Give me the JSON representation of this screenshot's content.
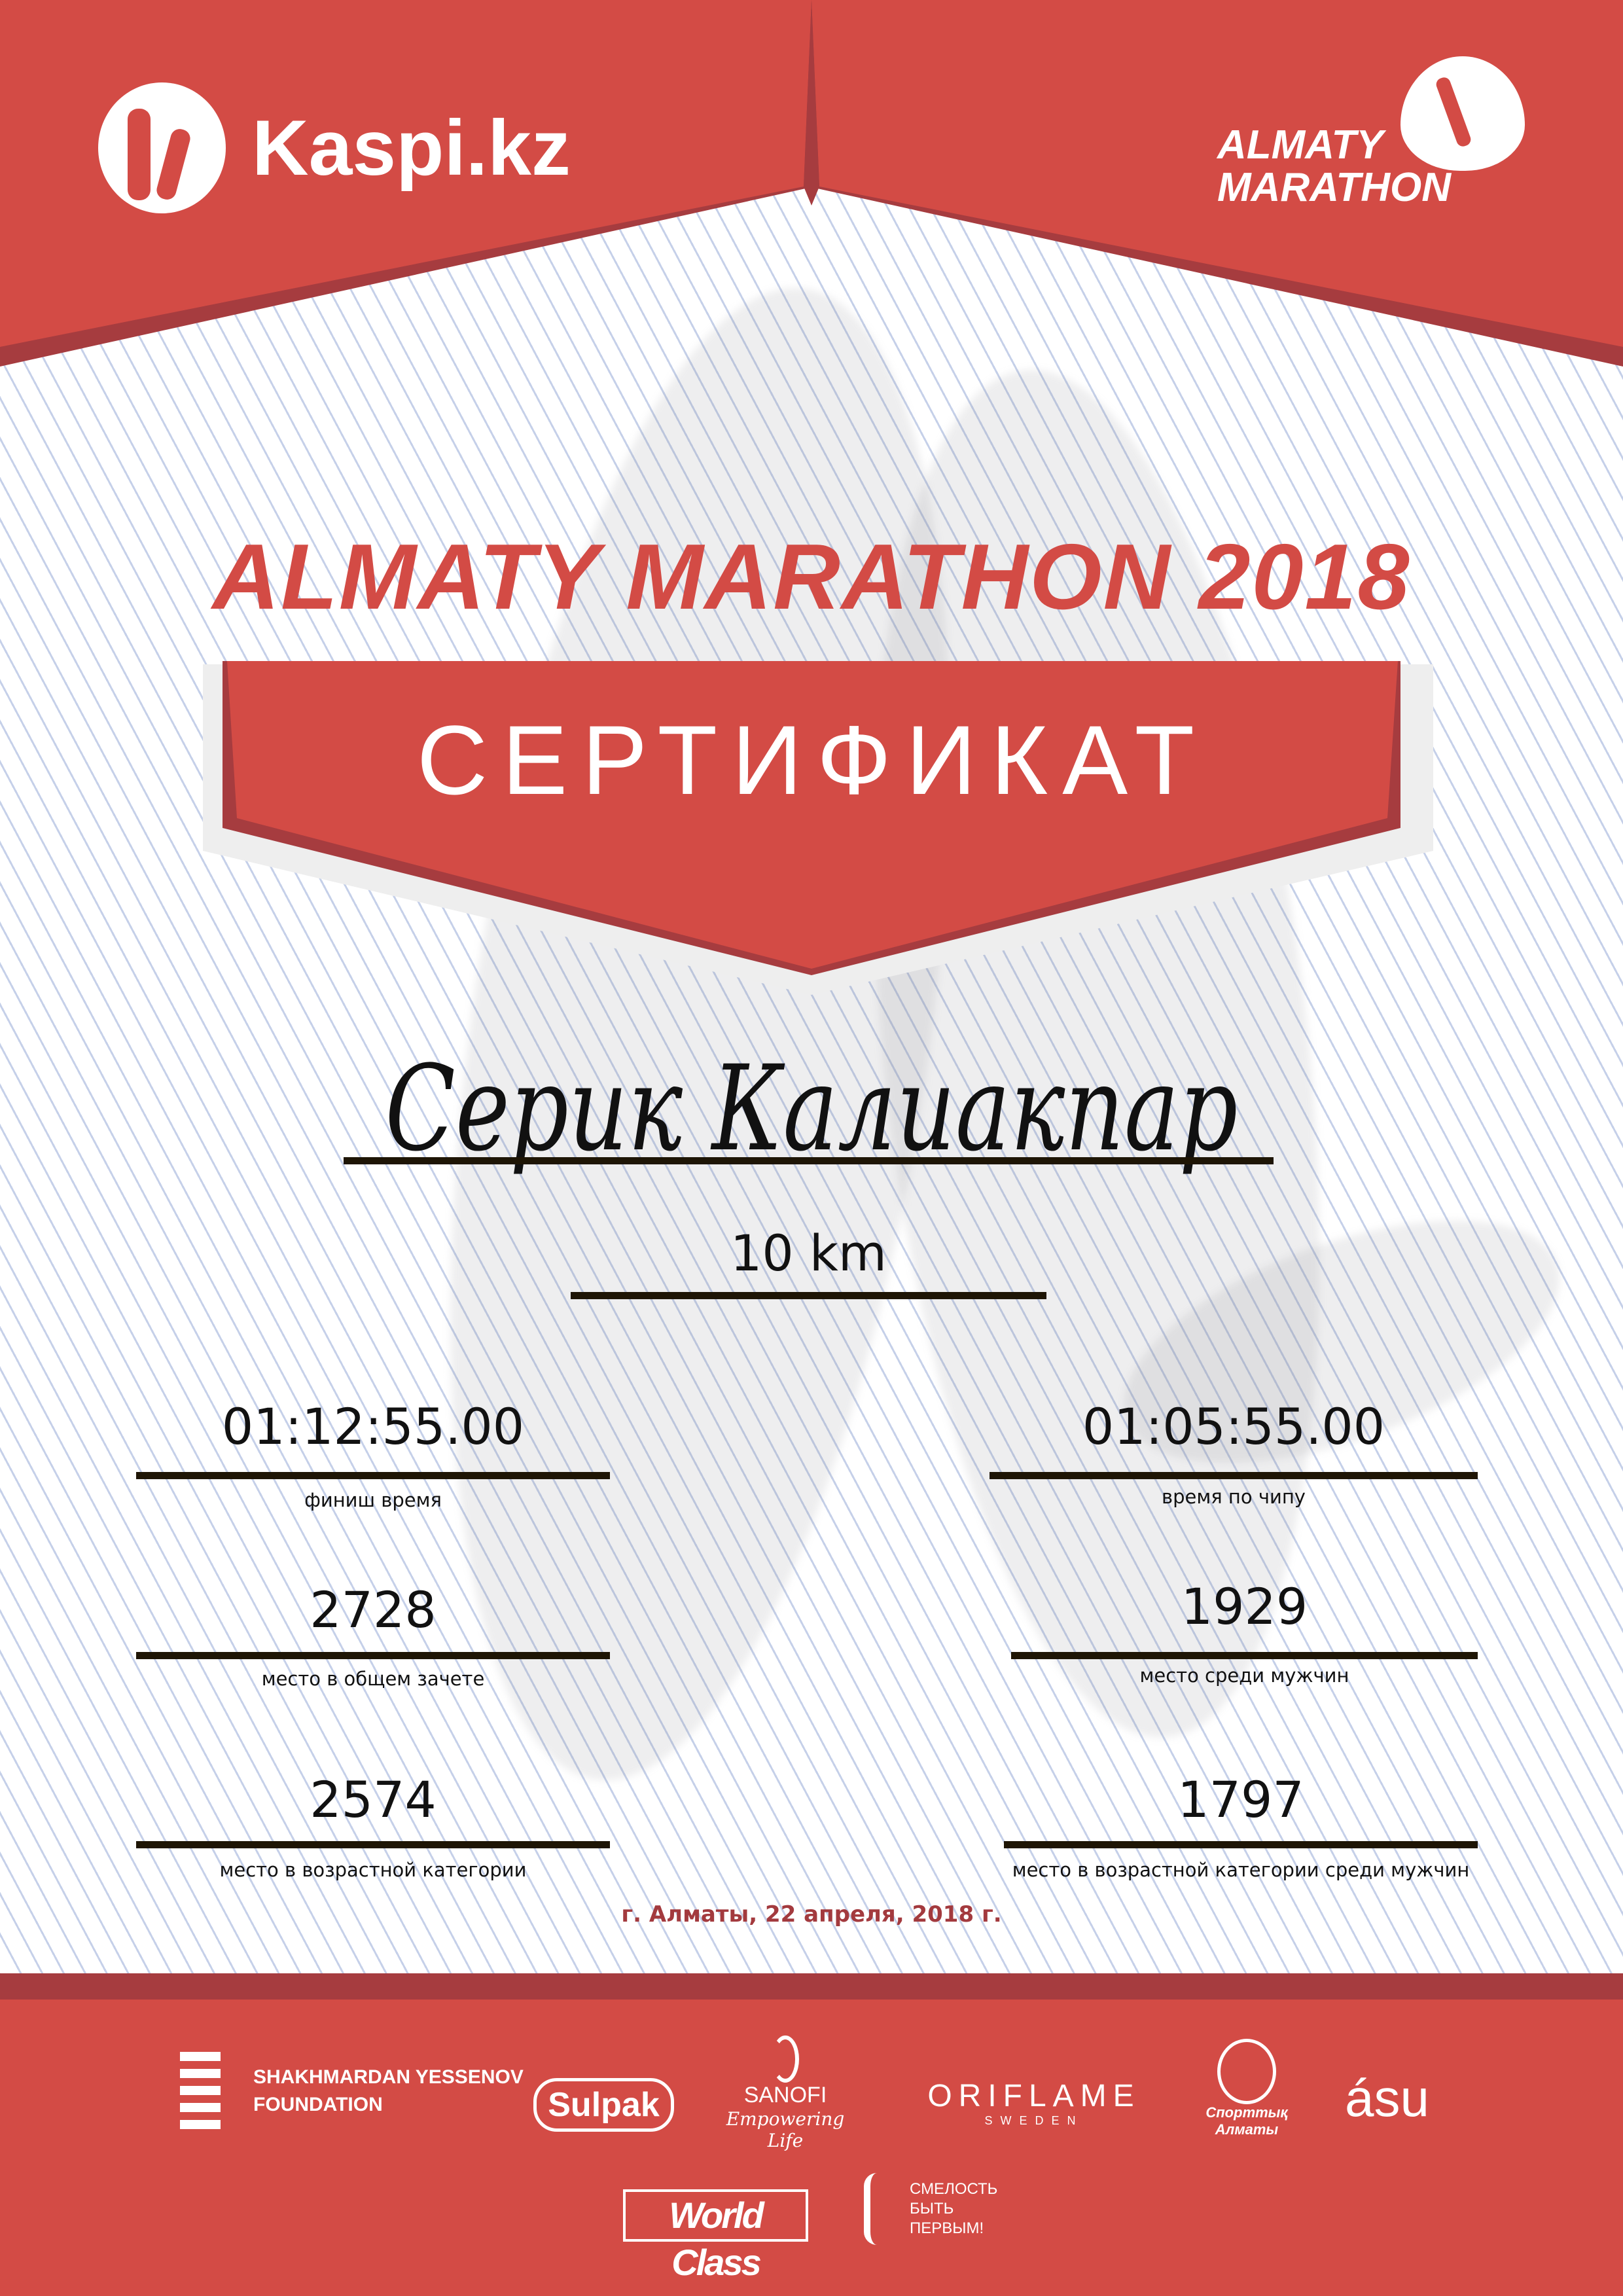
{
  "colors": {
    "brand_red": "#d34b45",
    "dark_red": "#a63c3f",
    "date_red": "#a33a3e",
    "line": "#1e1505"
  },
  "header": {
    "left_logo": "Kaspi.kz",
    "right_logo_line1": "ALMATY",
    "right_logo_line2": "MARATHON"
  },
  "event_title": "ALMATY MARATHON 2018",
  "certificate_label": "СЕРТИФИКАТ",
  "participant_name": "Серик Калиакпар",
  "distance": "10 km",
  "results": {
    "finish_time": {
      "value": "01:12:55.00",
      "label": "финиш время"
    },
    "chip_time": {
      "value": "01:05:55.00",
      "label": "время по чипу"
    },
    "overall_place": {
      "value": "2728",
      "label": "место в общем зачете"
    },
    "gender_place": {
      "value": "1929",
      "label": "место среди мужчин"
    },
    "age_place": {
      "value": "2574",
      "label": "место в возрастной категории"
    },
    "age_gender_place": {
      "value": "1797",
      "label": "место в возрастной категории среди мужчин"
    }
  },
  "date_line": "г. Алматы, 22 апреля, 2018 г.",
  "sponsors": {
    "yessenov_line1": "SHAKHMARDAN YESSENOV",
    "yessenov_line2": "FOUNDATION",
    "sulpak": "Sulpak",
    "sanofi": "SANOFI",
    "sanofi_tag": "Empowering Life",
    "oriflame": "ORIFLAME",
    "oriflame_sub": "SWEDEN",
    "sport_almaty": "Спорттық Алматы",
    "asu": "ásu",
    "worldclass": "World Class",
    "fund_line1": "СМЕЛОСТЬ",
    "fund_line2": "БЫТЬ",
    "fund_line3": "ПЕРВЫМ!"
  }
}
